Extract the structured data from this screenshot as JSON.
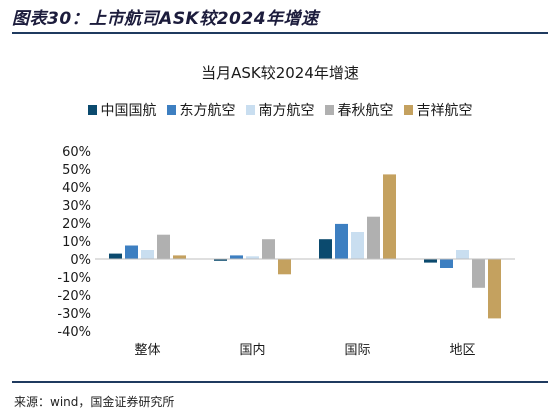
{
  "figure": {
    "title": "图表30：上市航司ASK较2024年增速",
    "source": "来源：wind，国金证券研究所"
  },
  "chart_data": {
    "type": "bar",
    "title": "当月ASK较2024年增速",
    "categories": [
      "整体",
      "国内",
      "国际",
      "地区"
    ],
    "series": [
      {
        "name": "中国国航",
        "color": "#0b4a6e",
        "values": [
          3,
          -1,
          11,
          -2
        ]
      },
      {
        "name": "东方航空",
        "color": "#3d7fc1",
        "values": [
          7.5,
          2,
          19.5,
          -5
        ]
      },
      {
        "name": "南方航空",
        "color": "#c9def0",
        "values": [
          5,
          1.5,
          15,
          5
        ]
      },
      {
        "name": "春秋航空",
        "color": "#b0b0b0",
        "values": [
          13.5,
          11,
          23.5,
          -16
        ]
      },
      {
        "name": "吉祥航空",
        "color": "#c4a15f",
        "values": [
          2,
          -8.5,
          47,
          -33
        ]
      }
    ],
    "ylim": [
      -40,
      60
    ],
    "yticks": [
      -40,
      -30,
      -20,
      -10,
      0,
      10,
      20,
      30,
      40,
      50,
      60
    ],
    "ytick_labels": [
      "-40%",
      "-30%",
      "-20%",
      "-10%",
      "0%",
      "10%",
      "20%",
      "30%",
      "40%",
      "50%",
      "60%"
    ],
    "grid": false,
    "legend_position": "top"
  }
}
